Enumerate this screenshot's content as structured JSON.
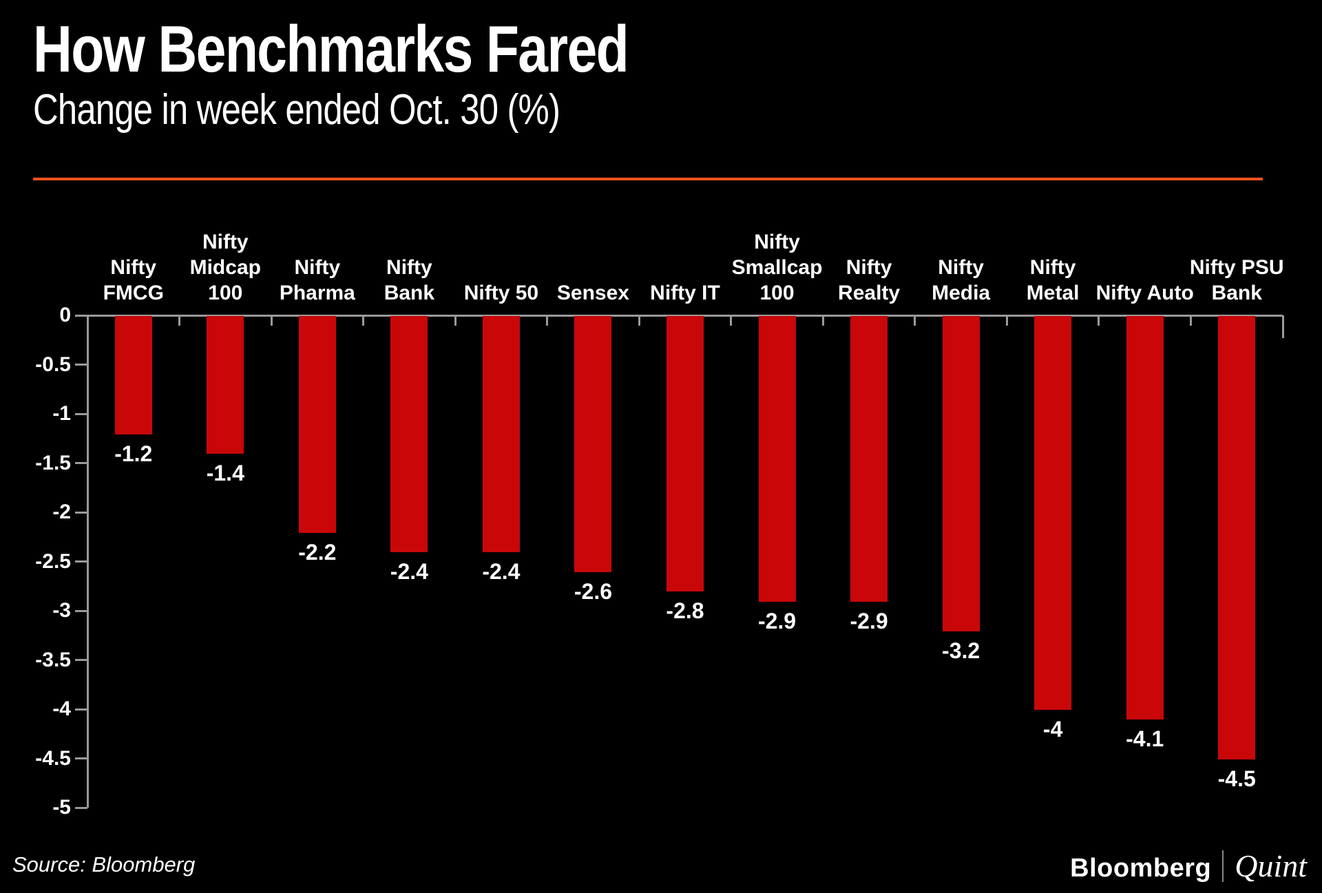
{
  "header": {
    "title": "How Benchmarks Fared",
    "subtitle": "Change in week ended Oct. 30 (%)",
    "divider_color": "#f0521e"
  },
  "footer": {
    "source": "Source: Bloomberg",
    "logo_bloomberg": "Bloomberg",
    "logo_quint": "Quint"
  },
  "colors": {
    "background": "#000000",
    "bar": "#c90708",
    "axis": "#9a9a9a",
    "text": "#ffffff",
    "accent": "#f0521e"
  },
  "chart_data": {
    "type": "bar",
    "title": "How Benchmarks Fared",
    "subtitle": "Change in week ended Oct. 30 (%)",
    "categories": [
      "Nifty FMCG",
      "Nifty Midcap 100",
      "Nifty Pharma",
      "Nifty Bank",
      "Nifty 50",
      "Sensex",
      "Nifty IT",
      "Nifty Smallcap 100",
      "Nifty Realty",
      "Nifty Media",
      "Nifty Metal",
      "Nifty Auto",
      "Nifty PSU Bank"
    ],
    "category_label_lines": [
      [
        "Nifty",
        "FMCG"
      ],
      [
        "Nifty",
        "Midcap",
        "100"
      ],
      [
        "Nifty",
        "Pharma"
      ],
      [
        "Nifty",
        "Bank"
      ],
      [
        "Nifty 50"
      ],
      [
        "Sensex"
      ],
      [
        "Nifty IT"
      ],
      [
        "Nifty",
        "Smallcap",
        "100"
      ],
      [
        "Nifty",
        "Realty"
      ],
      [
        "Nifty",
        "Media"
      ],
      [
        "Nifty",
        "Metal"
      ],
      [
        "Nifty Auto"
      ],
      [
        "Nifty PSU",
        "Bank"
      ]
    ],
    "values": [
      -1.2,
      -1.4,
      -2.2,
      -2.4,
      -2.4,
      -2.6,
      -2.8,
      -2.9,
      -2.9,
      -3.2,
      -4,
      -4.1,
      -4.5
    ],
    "value_labels": [
      "-1.2",
      "-1.4",
      "-2.2",
      "-2.4",
      "-2.4",
      "-2.6",
      "-2.8",
      "-2.9",
      "-2.9",
      "-3.2",
      "-4",
      "-4.1",
      "-4.5"
    ],
    "ylabel": "",
    "xlabel": "",
    "ylim": [
      0,
      -5
    ],
    "ytick_labels": [
      "0",
      "-0.5",
      "-1",
      "-1.5",
      "-2",
      "-2.5",
      "-3",
      "-3.5",
      "-4",
      "-4.5",
      "-5"
    ],
    "ytick_values": [
      0,
      -0.5,
      -1,
      -1.5,
      -2,
      -2.5,
      -3,
      -3.5,
      -4,
      -4.5,
      -5
    ],
    "grid": false,
    "legend": false,
    "bar_color": "#c90708"
  }
}
